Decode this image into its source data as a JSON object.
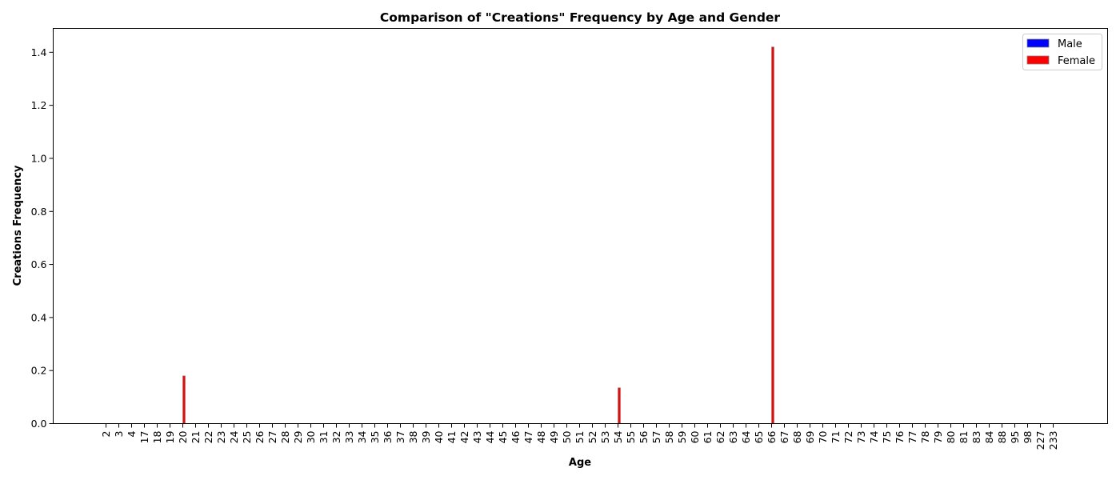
{
  "chart_data": {
    "type": "bar",
    "title": "Comparison of \"Creations\" Frequency by Age and Gender",
    "xlabel": "Age",
    "ylabel": "Creations Frequency",
    "ylim": [
      0,
      1.49
    ],
    "yticks": [
      "0.0",
      "0.2",
      "0.4",
      "0.6",
      "0.8",
      "1.0",
      "1.2",
      "1.4"
    ],
    "grid": false,
    "legend_position": "top-right",
    "categories": [
      "2",
      "3",
      "4",
      "17",
      "18",
      "19",
      "20",
      "21",
      "22",
      "23",
      "24",
      "25",
      "26",
      "27",
      "28",
      "29",
      "30",
      "31",
      "32",
      "33",
      "34",
      "35",
      "36",
      "37",
      "38",
      "39",
      "40",
      "41",
      "42",
      "43",
      "44",
      "45",
      "46",
      "47",
      "48",
      "49",
      "50",
      "51",
      "52",
      "53",
      "54",
      "55",
      "56",
      "57",
      "58",
      "59",
      "60",
      "61",
      "62",
      "63",
      "64",
      "65",
      "66",
      "67",
      "68",
      "69",
      "70",
      "71",
      "72",
      "73",
      "74",
      "75",
      "76",
      "77",
      "78",
      "79",
      "80",
      "81",
      "83",
      "84",
      "88",
      "95",
      "98",
      "227",
      "233"
    ],
    "series": [
      {
        "name": "Male",
        "color": "#0000ff",
        "values": [
          0,
          0,
          0,
          0,
          0,
          0,
          0,
          0,
          0,
          0,
          0,
          0,
          0,
          0,
          0,
          0,
          0,
          0,
          0,
          0,
          0,
          0,
          0,
          0,
          0,
          0,
          0,
          0,
          0,
          0,
          0,
          0,
          0,
          0,
          0,
          0,
          0,
          0,
          0,
          0,
          0,
          0,
          0,
          0,
          0,
          0,
          0,
          0,
          0,
          0,
          0,
          0,
          0,
          0,
          0,
          0,
          0,
          0,
          0,
          0,
          0,
          0,
          0,
          0,
          0,
          0,
          0,
          0,
          0,
          0,
          0,
          0,
          0,
          0,
          0
        ]
      },
      {
        "name": "Female",
        "color": "#ff0000",
        "values": [
          0,
          0,
          0,
          0,
          0,
          0,
          0.18,
          0,
          0,
          0,
          0,
          0,
          0,
          0,
          0,
          0,
          0,
          0,
          0,
          0,
          0,
          0,
          0,
          0,
          0,
          0,
          0,
          0,
          0,
          0,
          0,
          0,
          0,
          0,
          0,
          0,
          0,
          0,
          0,
          0,
          0.135,
          0,
          0,
          0,
          0,
          0,
          0,
          0,
          0,
          0,
          0,
          0,
          1.42,
          0,
          0,
          0,
          0,
          0,
          0,
          0,
          0,
          0,
          0,
          0,
          0,
          0,
          0,
          0,
          0,
          0,
          0,
          0,
          0,
          0,
          0
        ]
      }
    ]
  }
}
